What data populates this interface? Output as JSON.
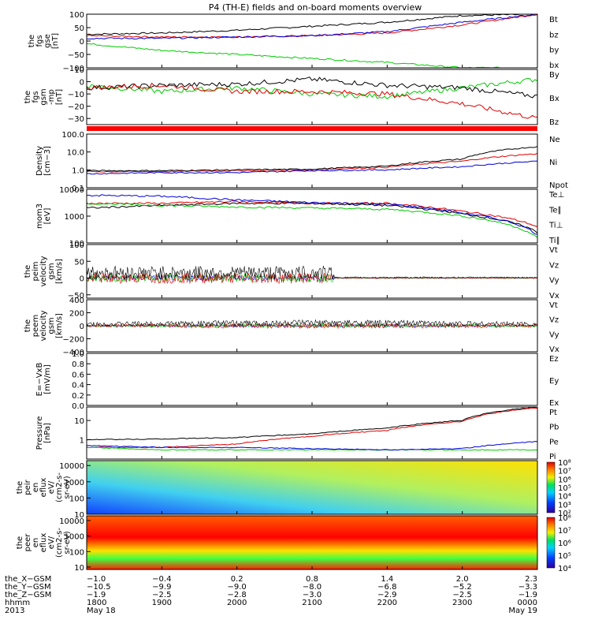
{
  "title": "P4 (TH-E) fields and on-board moments overview",
  "panels": [
    {
      "id": "fgs-gse",
      "ylabel": [
        "the",
        "fgs",
        "gse",
        "[nT]"
      ],
      "ticks": [
        "100",
        "50",
        "0",
        "−50",
        "−100"
      ],
      "tick_vals": [
        100,
        50,
        0,
        -50,
        -100
      ],
      "ylim": [
        -100,
        100
      ],
      "legend": [
        {
          "name": "Bt",
          "color": "#000000"
        },
        {
          "name": "bz",
          "color": "#dd0000"
        },
        {
          "name": "by",
          "color": "#00cc00"
        },
        {
          "name": "bx",
          "color": "#0000dd"
        }
      ]
    },
    {
      "id": "fgs-gsm",
      "ylabel": [
        "the",
        "fgs",
        "gsm",
        "-mp",
        "[nT]"
      ],
      "ticks": [
        "10",
        "0",
        "−10",
        "−20",
        "−30"
      ],
      "tick_vals": [
        10,
        0,
        -10,
        -20,
        -30
      ],
      "ylim": [
        -35,
        10
      ],
      "legend": [
        {
          "name": "By",
          "color": "#00cc00"
        },
        {
          "name": "Bx",
          "color": "#000000"
        },
        {
          "name": "Bz",
          "color": "#dd0000"
        }
      ]
    },
    {
      "id": "density",
      "ylabel": [
        "Density",
        "[cm−3]"
      ],
      "ticks": [
        "100.0",
        "10.0",
        "1.0",
        "0.1"
      ],
      "tick_vals": [
        100,
        10,
        1,
        0.1
      ],
      "ylim": [
        0.1,
        100
      ],
      "log": true,
      "legend": [
        {
          "name": "Ne",
          "color": "#dd0000"
        },
        {
          "name": "Ni",
          "color": "#000000"
        },
        {
          "name": "Npot",
          "color": "#0000dd"
        }
      ]
    },
    {
      "id": "temperature",
      "ylabel": [
        "mom3",
        "[eV]"
      ],
      "ticks": [
        "10000",
        "1000",
        "100"
      ],
      "tick_vals": [
        10000,
        1000,
        100
      ],
      "ylim": [
        100,
        10000
      ],
      "log": true,
      "legend": [
        {
          "name": "Te⊥",
          "color": "#dd0000"
        },
        {
          "name": "Te∥",
          "color": "#000000"
        },
        {
          "name": "Ti⊥",
          "color": "#0000dd"
        },
        {
          "name": "Ti∥",
          "color": "#00cc00"
        }
      ]
    },
    {
      "id": "peim-vel",
      "ylabel": [
        "the",
        "peim",
        "velocity",
        "gsm",
        "[km/s]"
      ],
      "ticks": [
        "100",
        "50",
        "0",
        "−50"
      ],
      "tick_vals": [
        100,
        50,
        0,
        -50
      ],
      "ylim": [
        -60,
        100
      ],
      "legend": [
        {
          "name": "Vt",
          "color": "#000000"
        },
        {
          "name": "Vz",
          "color": "#dd0000"
        },
        {
          "name": "Vy",
          "color": "#00cc00"
        },
        {
          "name": "Vx",
          "color": "#0000dd"
        }
      ]
    },
    {
      "id": "peem-vel",
      "ylabel": [
        "the",
        "peem",
        "velocity",
        "gsm",
        "[km/s]"
      ],
      "ticks": [
        "400",
        "200",
        "0",
        "−200",
        "−400"
      ],
      "tick_vals": [
        400,
        200,
        0,
        -200,
        -400
      ],
      "ylim": [
        -400,
        400
      ],
      "legend": [
        {
          "name": "Vt",
          "color": "#000000"
        },
        {
          "name": "Vz",
          "color": "#dd0000"
        },
        {
          "name": "Vy",
          "color": "#00cc00"
        },
        {
          "name": "Vx",
          "color": "#0000dd"
        }
      ]
    },
    {
      "id": "efield",
      "ylabel": [
        "E=−VxB",
        "[mV/m]"
      ],
      "ticks": [
        "1.0",
        "0.8",
        "0.6",
        "0.4",
        "0.2",
        "0.0"
      ],
      "tick_vals": [
        1,
        0.8,
        0.6,
        0.4,
        0.2,
        0
      ],
      "ylim": [
        0,
        1
      ],
      "legend": [
        {
          "name": "Ez",
          "color": "#dd0000"
        },
        {
          "name": "Ey",
          "color": "#00cc00"
        },
        {
          "name": "Ex",
          "color": "#0000dd"
        }
      ]
    },
    {
      "id": "pressure",
      "ylabel": [
        "Pressure",
        "[nPa]"
      ],
      "ticks": [
        "10",
        "1"
      ],
      "tick_vals": [
        10,
        1
      ],
      "ylim": [
        0.1,
        50
      ],
      "log": true,
      "legend": [
        {
          "name": "Pt",
          "color": "#000000"
        },
        {
          "name": "Pb",
          "color": "#dd0000"
        },
        {
          "name": "Pe",
          "color": "#00cc00"
        },
        {
          "name": "Pi",
          "color": "#0000dd"
        }
      ]
    },
    {
      "id": "peir-spec",
      "ylabel": [
        "the",
        "peir",
        "en",
        "eflux",
        "eV/",
        "(cm2-s-",
        "sr-eV)"
      ],
      "ticks": [
        "10000",
        "1000",
        "100",
        "10"
      ],
      "tick_vals": [
        10000,
        1000,
        100,
        10
      ],
      "ylim": [
        10,
        20000
      ],
      "log": true,
      "cbar_ticks": [
        "10⁸",
        "10⁷",
        "10⁶",
        "10⁵",
        "10⁴",
        "10³",
        "10²"
      ],
      "legend": []
    },
    {
      "id": "peer-spec",
      "ylabel": [
        "the",
        "peer",
        "en",
        "eflux",
        "eV/",
        "(cm2-s-",
        "sr-eV)"
      ],
      "ticks": [
        "10000",
        "1000",
        "100",
        "10"
      ],
      "tick_vals": [
        10000,
        1000,
        100,
        10
      ],
      "ylim": [
        7,
        20000
      ],
      "log": true,
      "cbar_ticks": [
        "10⁸",
        "10⁷",
        "10⁶",
        "10⁵",
        "10⁴"
      ],
      "legend": []
    }
  ],
  "xaxis": {
    "rows": [
      {
        "label": "the_X−GSM",
        "values": [
          "−1.0",
          "−0.4",
          "0.2",
          "0.8",
          "1.4",
          "2.0",
          "2.3"
        ]
      },
      {
        "label": "the_Y−GSM",
        "values": [
          "−10.5",
          "−9.9",
          "−9.0",
          "−8.0",
          "−6.8",
          "−5.2",
          "−3.3"
        ]
      },
      {
        "label": "the_Z−GSM",
        "values": [
          "−1.9",
          "−2.5",
          "−2.8",
          "−3.0",
          "−2.9",
          "−2.5",
          "−1.9"
        ]
      },
      {
        "label": "hhmm",
        "values": [
          "1800",
          "1900",
          "2000",
          "2100",
          "2200",
          "2300",
          "0000"
        ]
      },
      {
        "label": "2013",
        "values": [
          "May 18",
          "",
          "",
          "",
          "",
          "",
          "May 19"
        ]
      }
    ]
  },
  "chart_data": {
    "type": "line",
    "title": "P4 (TH-E) fields and on-board moments overview",
    "x": [
      "1800",
      "1900",
      "2000",
      "2100",
      "2200",
      "2300",
      "0000"
    ],
    "series": [
      {
        "name": "Bt",
        "panel": "fgs-gse",
        "values": [
          25,
          30,
          40,
          55,
          70,
          95,
          100
        ]
      },
      {
        "name": "bz",
        "panel": "fgs-gse",
        "values": [
          20,
          15,
          15,
          20,
          30,
          60,
          100
        ]
      },
      {
        "name": "by",
        "panel": "fgs-gse",
        "values": [
          -10,
          -35,
          -50,
          -65,
          -80,
          -100,
          -100
        ]
      },
      {
        "name": "bx",
        "panel": "fgs-gse",
        "values": [
          10,
          10,
          15,
          20,
          35,
          70,
          100
        ]
      },
      {
        "name": "By",
        "panel": "fgs-gsm",
        "values": [
          -3,
          -8,
          -5,
          -10,
          -12,
          -5,
          2
        ]
      },
      {
        "name": "Bx",
        "panel": "fgs-gsm",
        "values": [
          -5,
          -3,
          -2,
          2,
          -3,
          -5,
          -12
        ]
      },
      {
        "name": "Bz",
        "panel": "fgs-gsm",
        "values": [
          -5,
          -3,
          -8,
          -8,
          -10,
          -18,
          -30
        ]
      },
      {
        "name": "Ne",
        "panel": "density",
        "values": [
          0.8,
          0.8,
          0.9,
          1.0,
          1.4,
          3,
          8
        ]
      },
      {
        "name": "Ni",
        "panel": "density",
        "values": [
          0.9,
          0.9,
          1.0,
          1.1,
          1.6,
          4,
          20
        ]
      },
      {
        "name": "Npot",
        "panel": "density",
        "values": [
          0.6,
          0.7,
          0.7,
          0.9,
          1.0,
          1.5,
          3
        ]
      },
      {
        "name": "Te⊥",
        "panel": "temperature",
        "values": [
          3000,
          3000,
          3500,
          3000,
          3000,
          1500,
          400
        ]
      },
      {
        "name": "Te∥",
        "panel": "temperature",
        "values": [
          2000,
          2500,
          3000,
          3000,
          2500,
          1200,
          250
        ]
      },
      {
        "name": "Ti⊥",
        "panel": "temperature",
        "values": [
          6000,
          5500,
          4000,
          3200,
          2800,
          1300,
          200
        ]
      },
      {
        "name": "Ti∥",
        "panel": "temperature",
        "values": [
          3000,
          2500,
          2200,
          2000,
          1800,
          1000,
          150
        ]
      },
      {
        "name": "Pt",
        "panel": "pressure",
        "values": [
          1.0,
          1.1,
          1.3,
          2,
          4,
          10,
          50
        ]
      },
      {
        "name": "Pb",
        "panel": "pressure",
        "values": [
          0.4,
          0.4,
          0.6,
          1.5,
          3,
          9,
          45
        ]
      },
      {
        "name": "Pe",
        "panel": "pressure",
        "values": [
          0.4,
          0.3,
          0.3,
          0.3,
          0.3,
          0.3,
          0.3
        ]
      },
      {
        "name": "Pi",
        "panel": "pressure",
        "values": [
          0.5,
          0.4,
          0.4,
          0.35,
          0.3,
          0.35,
          0.8
        ]
      }
    ]
  }
}
